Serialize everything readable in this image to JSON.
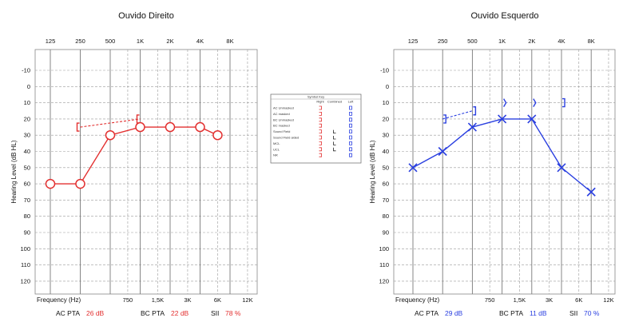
{
  "chart_data": [
    {
      "type": "line",
      "title": "Ouvido Direito",
      "ylabel": "Hearing Level (dB HL)",
      "xlabel": "Frequency (Hz)",
      "ylim": [
        -10,
        120
      ],
      "y_inverted": true,
      "color": "#e33030",
      "x_top_ticks": [
        "125",
        "250",
        "500",
        "1K",
        "2K",
        "4K",
        "8K"
      ],
      "x_bottom_ticks": [
        "750",
        "1,5K",
        "3K",
        "6K",
        "12K"
      ],
      "y_ticks": [
        "-10",
        "0",
        "10",
        "20",
        "30",
        "40",
        "50",
        "60",
        "70",
        "80",
        "90",
        "100",
        "110",
        "120"
      ],
      "series": [
        {
          "marker": "circle",
          "x": [
            "125",
            "250",
            "500",
            "1K",
            "2K",
            "4K",
            "6K"
          ],
          "y": [
            60,
            60,
            30,
            25,
            25,
            25,
            30
          ]
        },
        {
          "marker": "bracket",
          "x": [
            "250",
            "1K"
          ],
          "y": [
            25,
            20
          ]
        }
      ],
      "summary": [
        {
          "label": "AC PTA",
          "value": "26 dB"
        },
        {
          "label": "BC PTA",
          "value": "22 dB"
        },
        {
          "label": "SII",
          "value": "78 %"
        }
      ]
    },
    {
      "type": "line",
      "title": "Ouvido Esquerdo",
      "ylabel": "Hearing Level (dB HL)",
      "xlabel": "Frequency (Hz)",
      "ylim": [
        -10,
        120
      ],
      "y_inverted": true,
      "color": "#2b40e0",
      "x_top_ticks": [
        "125",
        "250",
        "500",
        "1K",
        "2K",
        "4K",
        "8K"
      ],
      "x_bottom_ticks": [
        "750",
        "1,5K",
        "3K",
        "6K",
        "12K"
      ],
      "y_ticks": [
        "-10",
        "0",
        "10",
        "20",
        "30",
        "40",
        "50",
        "60",
        "70",
        "80",
        "90",
        "100",
        "110",
        "120"
      ],
      "series": [
        {
          "marker": "x",
          "x": [
            "125",
            "250",
            "500",
            "1K",
            "2K",
            "4K",
            "8K"
          ],
          "y": [
            50,
            40,
            25,
            20,
            20,
            50,
            65
          ]
        },
        {
          "marker": "bracket",
          "x": [
            "250",
            "500",
            "4K"
          ],
          "y": [
            20,
            15,
            10
          ]
        },
        {
          "marker": "chevron",
          "x": [
            "1K",
            "2K"
          ],
          "y": [
            10,
            10
          ]
        }
      ],
      "summary": [
        {
          "label": "AC PTA",
          "value": "29 dB"
        },
        {
          "label": "BC PTA",
          "value": "11 dB"
        },
        {
          "label": "SII",
          "value": "70 %"
        }
      ]
    }
  ],
  "legend": {
    "title": "Symbol Key",
    "columns": [
      "Right",
      "Combined",
      "Left"
    ],
    "rows": [
      "AC Unmasked",
      "AC masked",
      "BC Unmasked",
      "BC masked",
      "Sound Field",
      "Sound Field aided",
      "MCL",
      "UCL",
      "NR"
    ]
  },
  "colors": {
    "right": "#e33030",
    "left": "#2b40e0",
    "grid": "#9a9a9a"
  }
}
